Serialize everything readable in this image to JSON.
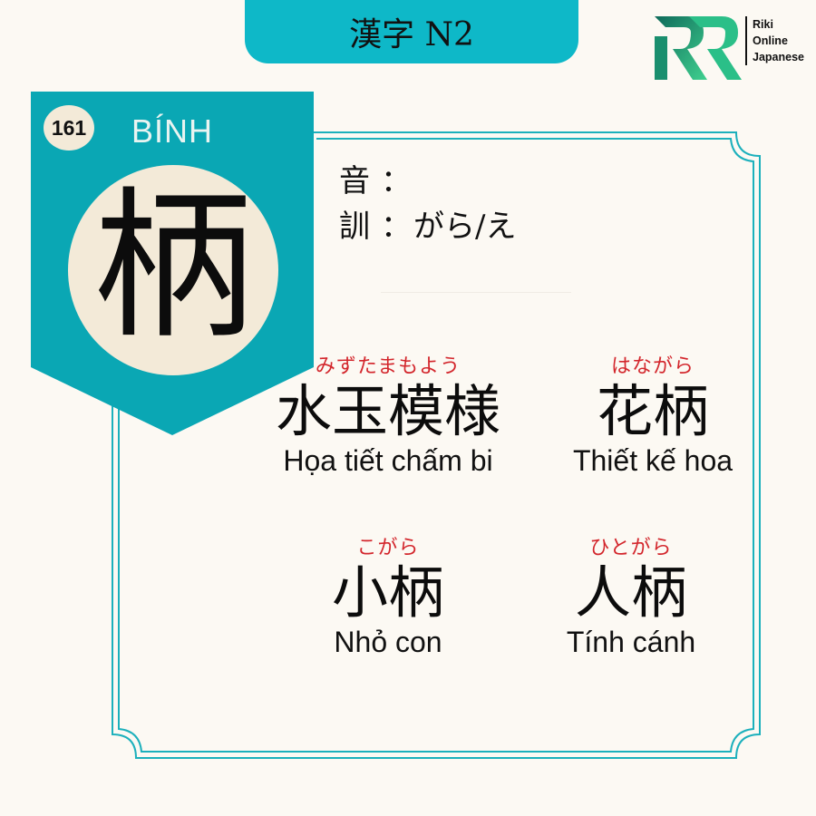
{
  "header": {
    "title": "漢字 N2"
  },
  "logo": {
    "lines": [
      "Riki",
      "Online",
      "Japanese"
    ]
  },
  "kanji": {
    "number": "161",
    "reading_vn": "BÍNH",
    "character": "柄"
  },
  "readings": {
    "on_label": "音",
    "on_value": "",
    "kun_label": "訓",
    "kun_value": "がら/え",
    "separator": "："
  },
  "vocab": [
    {
      "furigana": "みずたまもよう",
      "word": "水玉模様",
      "meaning": "Họa tiết chấm bi"
    },
    {
      "furigana": "はながら",
      "word": "花柄",
      "meaning": "Thiết kế hoa"
    },
    {
      "furigana": "こがら",
      "word": "小柄",
      "meaning": "Nhỏ con"
    },
    {
      "furigana": "ひとがら",
      "word": "人柄",
      "meaning": "Tính cánh"
    }
  ],
  "colors": {
    "accent": "#0eb8c8",
    "ribbon": "#0aa7b4",
    "border": "#1cb0bc",
    "furigana": "#d3262c",
    "background": "#fcf9f3",
    "circle": "#f3ead8"
  }
}
